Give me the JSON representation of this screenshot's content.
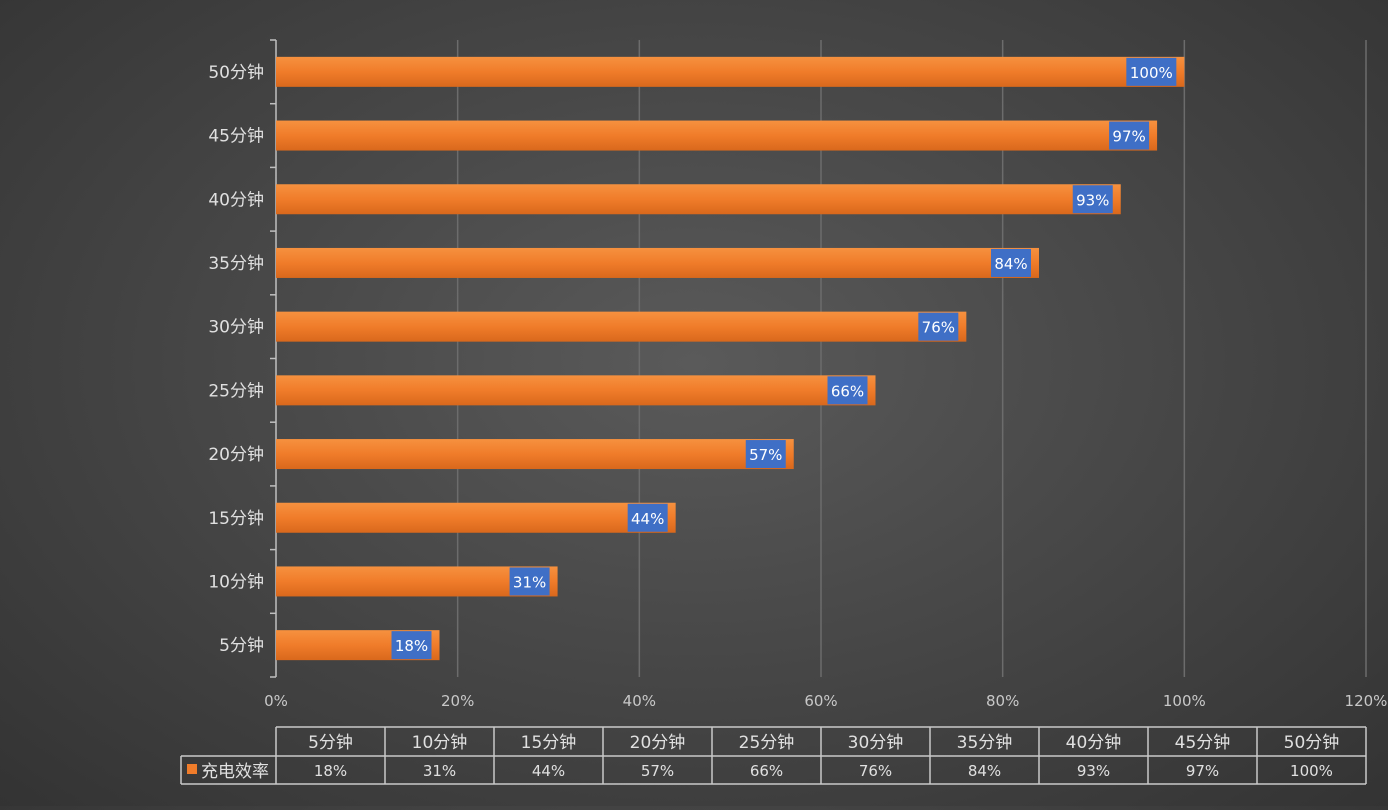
{
  "chart_data": {
    "type": "bar",
    "orientation": "horizontal",
    "categories": [
      "5分钟",
      "10分钟",
      "15分钟",
      "20分钟",
      "25分钟",
      "30分钟",
      "35分钟",
      "40分钟",
      "45分钟",
      "50分钟"
    ],
    "series": [
      {
        "name": "充电效率",
        "values": [
          18,
          31,
          44,
          57,
          66,
          76,
          84,
          93,
          97,
          100
        ],
        "color": "#f07c2a"
      }
    ],
    "value_unit": "%",
    "xlim": [
      0,
      120
    ],
    "xticks": [
      "0%",
      "20%",
      "40%",
      "60%",
      "80%",
      "100%",
      "120%"
    ],
    "grid": "vertical",
    "data_label_color": "#3f6fc6",
    "legend": "data-table-below",
    "data_table": {
      "row_label": "充电效率",
      "cells": [
        "18%",
        "31%",
        "44%",
        "57%",
        "66%",
        "76%",
        "84%",
        "93%",
        "97%",
        "100%"
      ]
    }
  }
}
